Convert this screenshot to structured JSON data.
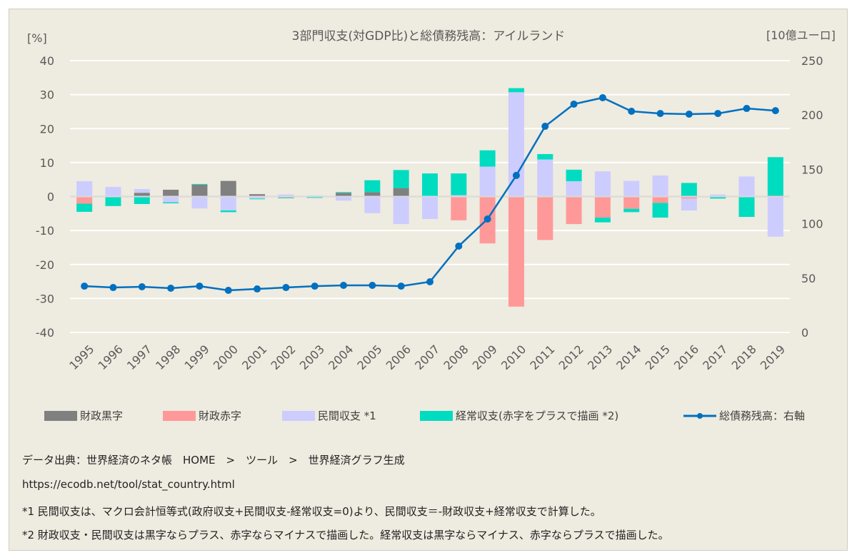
{
  "chart_data": {
    "type": "bar",
    "title": "3部門収支(対GDP比)と総債務残高：アイルランド",
    "ylabel_left": "[%]",
    "ylabel_right": "[10億ユーロ]",
    "ylim_left": [
      -40,
      40
    ],
    "yticks_left": [
      40,
      30,
      20,
      10,
      0,
      -10,
      -20,
      -30,
      -40
    ],
    "ylim_right": [
      0,
      250
    ],
    "yticks_right": [
      250,
      200,
      150,
      100,
      50,
      0
    ],
    "grid": true,
    "stacked": true,
    "legend_position": "bottom",
    "categories": [
      "1995",
      "1996",
      "1997",
      "1998",
      "1999",
      "2000",
      "2001",
      "2002",
      "2003",
      "2004",
      "2005",
      "2006",
      "2007",
      "2008",
      "2009",
      "2010",
      "2011",
      "2012",
      "2013",
      "2014",
      "2015",
      "2016",
      "2017",
      "2018",
      "2019"
    ],
    "series": [
      {
        "name": "財政黒字",
        "color": "#808080",
        "axis": "left",
        "values": [
          0,
          0,
          1.1,
          2.0,
          3.5,
          4.6,
          0.7,
          0,
          0,
          1.1,
          1.3,
          2.5,
          0.2,
          0,
          0,
          0,
          0,
          0,
          0,
          0,
          0,
          0,
          0,
          0.1,
          0.3
        ]
      },
      {
        "name": "財政赤字",
        "color": "#ff9999",
        "axis": "left",
        "values": [
          -2.1,
          -0.1,
          0,
          0,
          0,
          0,
          0,
          -0.3,
          0,
          0,
          0,
          0,
          0,
          -7.0,
          -13.8,
          -32.4,
          -12.8,
          -8.1,
          -6.2,
          -3.6,
          -1.9,
          -0.6,
          -0.2,
          0,
          0
        ]
      },
      {
        "name": "民間収支 *1",
        "color": "#ccccff",
        "axis": "left",
        "values": [
          4.5,
          2.8,
          1.1,
          -1.7,
          -3.5,
          -4.1,
          -0.6,
          0.6,
          0.3,
          -1.2,
          -4.9,
          -8.1,
          -6.6,
          0.4,
          8.8,
          30.7,
          10.9,
          4.5,
          7.4,
          4.6,
          6.2,
          -3.5,
          0.6,
          5.8,
          -11.8
        ]
      },
      {
        "name": "経常収支(赤字をプラスで描画 *2)",
        "color": "#00dcc0",
        "axis": "left",
        "values": [
          -2.4,
          -2.7,
          -2.2,
          -0.3,
          0.2,
          -0.5,
          -0.2,
          -0.2,
          -0.4,
          0.2,
          3.5,
          5.3,
          6.6,
          6.4,
          4.8,
          1.2,
          1.6,
          3.4,
          -1.4,
          -1.0,
          -4.3,
          4.0,
          -0.4,
          -6.0,
          11.3
        ]
      },
      {
        "name": "総債務残高：右軸",
        "type": "line",
        "color": "#0070c0",
        "axis": "right",
        "values": [
          42.6,
          41.3,
          42,
          40.7,
          42.6,
          38.7,
          40,
          41.3,
          42.6,
          43.3,
          43.3,
          42.6,
          46.6,
          79.4,
          104.3,
          144.4,
          189.6,
          210,
          215.9,
          203.4,
          201.4,
          200.8,
          201.4,
          206,
          204
        ]
      }
    ]
  },
  "notes": [
    "データ出典：世界経済のネタ帳　HOME　>　ツール　>　世界経済グラフ生成",
    "https://ecodb.net/tool/stat_country.html",
    "*1 民間収支は、マクロ会計恒等式(政府収支+民間収支-経常収支=0)より、民間収支＝-財政収支+経常収支で計算した。",
    "*2 財政収支・民間収支は黒字ならプラス、赤字ならマイナスで描画した。経常収支は黒字ならマイナス、赤字ならプラスで描画した。"
  ]
}
